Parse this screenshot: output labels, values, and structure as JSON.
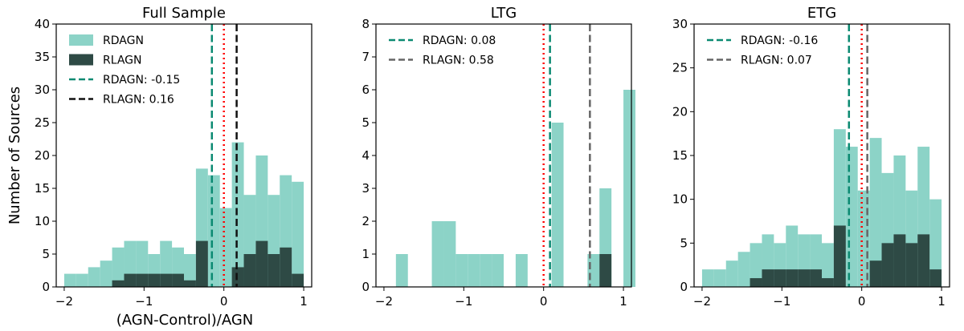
{
  "colors": {
    "rdagn_fill": "#8cd3c7",
    "rlagn_fill": "#2e4a45",
    "rdagn_line": "#0b8a72",
    "rlagn_line_full": "#111111",
    "rlagn_line_sub": "#666666",
    "zero_line": "#ff0000"
  },
  "chart_data": [
    {
      "type": "histogram",
      "title": "Full Sample",
      "xlabel": "(AGN-Control)/AGN",
      "ylabel": "Number of Sources",
      "xlim": [
        -2.1,
        1.1
      ],
      "ylim": [
        0,
        40
      ],
      "xticks": [
        -2,
        -1,
        0,
        1
      ],
      "xtick_labels": [
        "−2",
        "−1",
        "0",
        "1"
      ],
      "yticks": [
        0,
        5,
        10,
        15,
        20,
        25,
        30,
        35,
        40
      ],
      "ytick_labels": [
        "0",
        "5",
        "10",
        "15",
        "20",
        "25",
        "30",
        "35",
        "40"
      ],
      "bin_start": -2.0,
      "bin_width": 0.15,
      "series": [
        {
          "name": "RDAGN",
          "values": [
            2,
            2,
            3,
            4,
            6,
            7,
            7,
            5,
            7,
            6,
            5,
            18,
            17,
            12,
            22,
            14,
            20,
            14,
            17,
            16
          ]
        },
        {
          "name": "RLAGN",
          "values": [
            0,
            0,
            0,
            0,
            1,
            2,
            2,
            2,
            2,
            2,
            1,
            7,
            0,
            0,
            3,
            5,
            7,
            5,
            6,
            2
          ]
        }
      ],
      "legend": [
        "RDAGN",
        "RLAGN",
        "RDAGN: -0.15",
        "RLAGN: 0.16"
      ],
      "vlines": [
        {
          "name": "RDAGN",
          "x": -0.15,
          "label": "RDAGN: -0.15"
        },
        {
          "name": "RLAGN",
          "x": 0.16,
          "label": "RLAGN: 0.16"
        },
        {
          "name": "zero",
          "x": 0
        }
      ]
    },
    {
      "type": "histogram",
      "title": "LTG",
      "xlabel": "",
      "ylabel": "",
      "xlim": [
        -2.1,
        1.1
      ],
      "ylim": [
        0,
        8
      ],
      "xticks": [
        -2,
        -1,
        0,
        1
      ],
      "xtick_labels": [
        "−2",
        "−1",
        "0",
        "1"
      ],
      "yticks": [
        0,
        1,
        2,
        3,
        4,
        5,
        6,
        7,
        8
      ],
      "ytick_labels": [
        "0",
        "1",
        "2",
        "3",
        "4",
        "5",
        "6",
        "7",
        "8"
      ],
      "bin_start": -1.85,
      "bin_width": 0.15,
      "series": [
        {
          "name": "RDAGN",
          "values": [
            1,
            0,
            0,
            2,
            2,
            1,
            1,
            1,
            1,
            0,
            1,
            0,
            0,
            5,
            0,
            0,
            1,
            3,
            0,
            6
          ]
        },
        {
          "name": "RLAGN",
          "values": [
            0,
            0,
            0,
            0,
            0,
            0,
            0,
            0,
            0,
            0,
            0,
            0,
            0,
            0,
            0,
            0,
            0,
            1,
            0,
            0
          ]
        }
      ],
      "legend": [
        "RDAGN: 0.08",
        "RLAGN: 0.58"
      ],
      "vlines": [
        {
          "name": "RDAGN",
          "x": 0.08,
          "label": "RDAGN: 0.08"
        },
        {
          "name": "RLAGN",
          "x": 0.58,
          "label": "RLAGN: 0.58"
        },
        {
          "name": "zero",
          "x": 0
        }
      ]
    },
    {
      "type": "histogram",
      "title": "ETG",
      "xlabel": "",
      "ylabel": "",
      "xlim": [
        -2.1,
        1.1
      ],
      "ylim": [
        0,
        30
      ],
      "xticks": [
        -2,
        -1,
        0,
        1
      ],
      "xtick_labels": [
        "−2",
        "−1",
        "0",
        "1"
      ],
      "yticks": [
        0,
        5,
        10,
        15,
        20,
        25,
        30
      ],
      "ytick_labels": [
        "0",
        "5",
        "10",
        "15",
        "20",
        "25",
        "30"
      ],
      "bin_start": -2.0,
      "bin_width": 0.15,
      "series": [
        {
          "name": "RDAGN",
          "values": [
            2,
            2,
            3,
            4,
            5,
            6,
            5,
            7,
            6,
            6,
            5,
            18,
            16,
            11,
            17,
            13,
            15,
            11,
            16,
            10
          ]
        },
        {
          "name": "RLAGN",
          "values": [
            0,
            0,
            0,
            0,
            1,
            2,
            2,
            2,
            2,
            2,
            1,
            7,
            0,
            0,
            3,
            5,
            6,
            5,
            6,
            2
          ]
        }
      ],
      "legend": [
        "RDAGN: -0.16",
        "RLAGN: 0.07"
      ],
      "vlines": [
        {
          "name": "RDAGN",
          "x": -0.16,
          "label": "RDAGN: -0.16"
        },
        {
          "name": "RLAGN",
          "x": 0.07,
          "label": "RLAGN: 0.07"
        },
        {
          "name": "zero",
          "x": 0
        }
      ]
    }
  ]
}
